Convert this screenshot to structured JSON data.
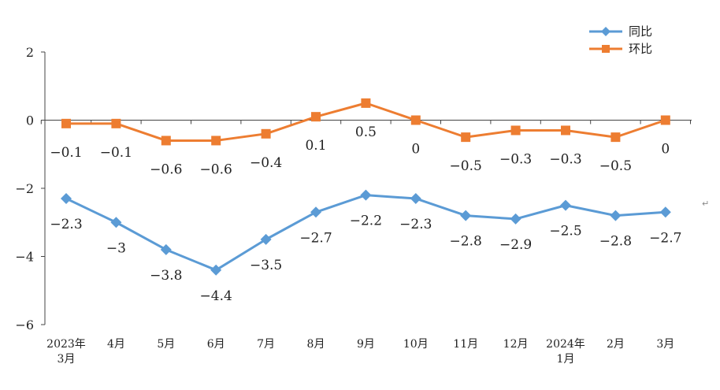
{
  "chart_data": {
    "type": "line",
    "title": "",
    "xlabel": "",
    "ylabel": "",
    "ylim": [
      -6,
      2
    ],
    "yticks": [
      2,
      0,
      -2,
      -4,
      -6
    ],
    "ytick_labels": [
      "2",
      "0",
      "−2",
      "−4",
      "−6"
    ],
    "categories": [
      [
        "2023年",
        "3月"
      ],
      [
        "4月"
      ],
      [
        "5月"
      ],
      [
        "6月"
      ],
      [
        "7月"
      ],
      [
        "8月"
      ],
      [
        "9月"
      ],
      [
        "10月"
      ],
      [
        "11月"
      ],
      [
        "12月"
      ],
      [
        "2024年",
        "1月"
      ],
      [
        "2月"
      ],
      [
        "3月"
      ]
    ],
    "legend_position": "top-right",
    "grid": false,
    "series": [
      {
        "name": "同比",
        "color": "#5B9BD5",
        "marker": "diamond",
        "values": [
          -2.3,
          -3,
          -3.8,
          -4.4,
          -3.5,
          -2.7,
          -2.2,
          -2.3,
          -2.8,
          -2.9,
          -2.5,
          -2.8,
          -2.7
        ],
        "labels": [
          "−2.3",
          "−3",
          "−3.8",
          "−4.4",
          "−3.5",
          "−2.7",
          "−2.2",
          "−2.3",
          "−2.8",
          "−2.9",
          "−2.5",
          "−2.8",
          "−2.7"
        ]
      },
      {
        "name": "环比",
        "color": "#ED7D31",
        "marker": "square",
        "values": [
          -0.1,
          -0.1,
          -0.6,
          -0.6,
          -0.4,
          0.1,
          0.5,
          0,
          -0.5,
          -0.3,
          -0.3,
          -0.5,
          0
        ],
        "labels": [
          "−0.1",
          "−0.1",
          "−0.6",
          "−0.6",
          "−0.4",
          "0.1",
          "0.5",
          "0",
          "−0.5",
          "−0.3",
          "−0.3",
          "−0.5",
          "0"
        ]
      }
    ]
  },
  "stray_mark": "↵"
}
